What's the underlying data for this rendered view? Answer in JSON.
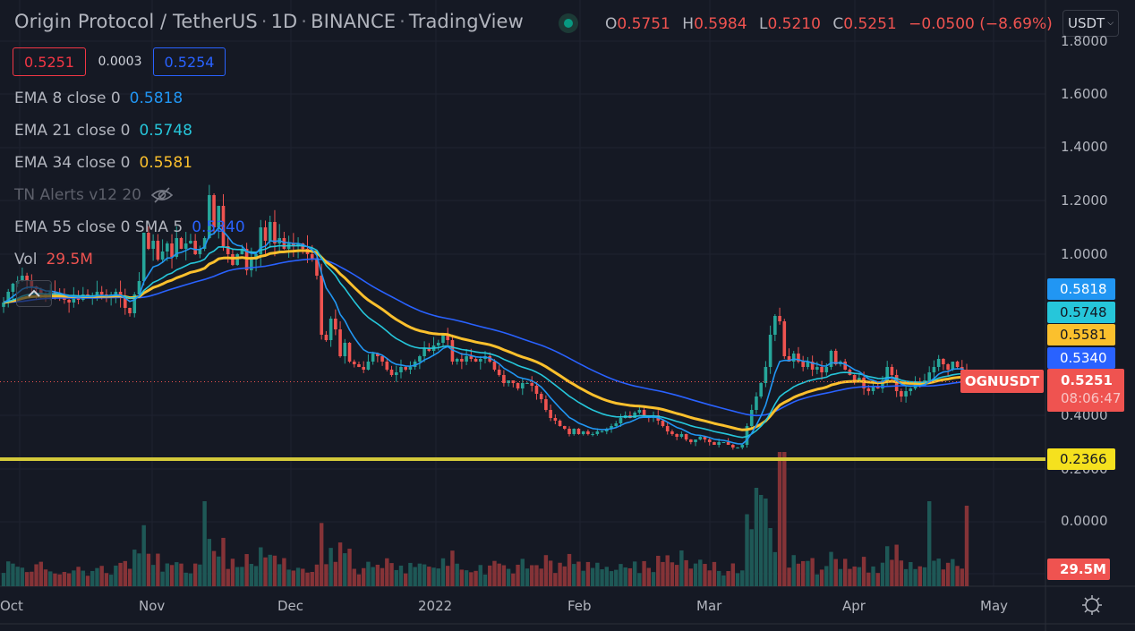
{
  "header": {
    "symbol_name": "Origin Protocol / TetherUS",
    "interval": "1D",
    "exchange": "BINANCE",
    "source": "TradingView",
    "market_status_color": "#089981"
  },
  "ohlc": {
    "o_label": "O",
    "o": "0.5751",
    "h_label": "H",
    "h": "0.5984",
    "l_label": "L",
    "l": "0.5210",
    "c_label": "C",
    "c": "0.5251",
    "change": "−0.0500 (−8.69%)"
  },
  "currency": {
    "label": "USDT"
  },
  "spread": {
    "bid": "0.5251",
    "spread": "0.0003",
    "ask": "0.5254"
  },
  "legend": [
    {
      "name": "EMA 8 close 0",
      "value": "0.5818",
      "color": "#2196f3"
    },
    {
      "name": "EMA 21 close 0",
      "value": "0.5748",
      "color": "#26c6da"
    },
    {
      "name": "EMA 34 close 0",
      "value": "0.5581",
      "color": "#fbc02d"
    },
    {
      "name": "TN Alerts v12 20",
      "value": "",
      "color": "#5d606b",
      "hidden": true
    },
    {
      "name": "EMA 55 close 0 SMA 5",
      "value": "0.5340",
      "color": "#2962ff"
    },
    {
      "name": "Vol",
      "value": "29.5M",
      "color": "#ef5350"
    }
  ],
  "price_axis": {
    "ticks": [
      "1.8000",
      "1.6000",
      "1.4000",
      "1.2000",
      "1.0000",
      "0.4000",
      "0.2000",
      "0.0000"
    ],
    "tags": [
      {
        "value": "0.5818",
        "bg": "#2196f3",
        "fg": "#ffffff"
      },
      {
        "value": "0.5748",
        "bg": "#26c6da",
        "fg": "#131722"
      },
      {
        "value": "0.5581",
        "bg": "#fbc02d",
        "fg": "#131722"
      },
      {
        "value": "0.5340",
        "bg": "#2962ff",
        "fg": "#ffffff"
      }
    ],
    "symbol_tag": "OGNUSDT",
    "last_price": "0.5251",
    "countdown": "08:06:47",
    "hline_value": "0.2366",
    "hline_color": "#f0e130",
    "volume_tag": "29.5M"
  },
  "time_axis": {
    "labels": [
      "Oct",
      "Nov",
      "Dec",
      "2022",
      "Feb",
      "Mar",
      "Apr",
      "May"
    ]
  },
  "chart_data": {
    "type": "candlestick",
    "title": "Origin Protocol / TetherUS · 1D · BINANCE",
    "xlabel": "",
    "ylabel": "USDT",
    "ylim": [
      0.0,
      1.8
    ],
    "x_ticks": [
      "Oct",
      "Nov",
      "Dec",
      "2022",
      "Feb",
      "Mar",
      "Apr",
      "May"
    ],
    "y_ticks": [
      0.0,
      0.2,
      0.4,
      1.0,
      1.2,
      1.4,
      1.6,
      1.8
    ],
    "grid": true,
    "legend_position": "top-left",
    "close": [
      0.82,
      0.86,
      0.89,
      0.9,
      0.92,
      0.9,
      0.88,
      0.87,
      0.85,
      0.84,
      0.86,
      0.85,
      0.84,
      0.83,
      0.82,
      0.84,
      0.83,
      0.85,
      0.84,
      0.84,
      0.86,
      0.85,
      0.84,
      0.85,
      0.86,
      0.84,
      0.8,
      0.78,
      0.85,
      0.9,
      1.08,
      1.02,
      1.05,
      0.98,
      1.01,
      1.04,
      0.99,
      1.06,
      1.02,
      1.04,
      1.05,
      1.0,
      1.02,
      1.06,
      1.22,
      1.1,
      1.18,
      1.03,
      1.0,
      0.96,
      1.0,
      1.02,
      0.94,
      0.98,
      1.0,
      1.1,
      1.05,
      1.12,
      1.04,
      1.06,
      1.02,
      1.04,
      1.03,
      1.04,
      1.02,
      1.0,
      0.98,
      0.92,
      0.7,
      0.68,
      0.76,
      0.72,
      0.62,
      0.67,
      0.6,
      0.59,
      0.58,
      0.57,
      0.6,
      0.63,
      0.62,
      0.6,
      0.57,
      0.55,
      0.56,
      0.58,
      0.57,
      0.58,
      0.6,
      0.62,
      0.65,
      0.64,
      0.66,
      0.67,
      0.7,
      0.68,
      0.6,
      0.61,
      0.6,
      0.62,
      0.61,
      0.6,
      0.61,
      0.62,
      0.6,
      0.57,
      0.55,
      0.52,
      0.53,
      0.52,
      0.5,
      0.52,
      0.52,
      0.51,
      0.48,
      0.46,
      0.42,
      0.39,
      0.38,
      0.36,
      0.35,
      0.33,
      0.35,
      0.33,
      0.34,
      0.33,
      0.33,
      0.34,
      0.34,
      0.35,
      0.36,
      0.37,
      0.39,
      0.4,
      0.39,
      0.41,
      0.42,
      0.4,
      0.39,
      0.4,
      0.38,
      0.36,
      0.34,
      0.33,
      0.32,
      0.33,
      0.31,
      0.3,
      0.31,
      0.32,
      0.31,
      0.3,
      0.29,
      0.3,
      0.3,
      0.29,
      0.28,
      0.28,
      0.29,
      0.36,
      0.42,
      0.47,
      0.52,
      0.58,
      0.7,
      0.77,
      0.75,
      0.62,
      0.6,
      0.63,
      0.6,
      0.58,
      0.6,
      0.57,
      0.58,
      0.56,
      0.58,
      0.64,
      0.59,
      0.6,
      0.57,
      0.55,
      0.53,
      0.54,
      0.5,
      0.49,
      0.51,
      0.5,
      0.53,
      0.58,
      0.55,
      0.49,
      0.47,
      0.49,
      0.5,
      0.52,
      0.51,
      0.53,
      0.56,
      0.58,
      0.61,
      0.59,
      0.57,
      0.6,
      0.58,
      0.57,
      0.5251
    ],
    "volume_scale_note": "relative heights, last bar = 29.5M",
    "series": [
      {
        "name": "EMA 8 close 0",
        "last": 0.5818,
        "color": "#2196f3"
      },
      {
        "name": "EMA 21 close 0",
        "last": 0.5748,
        "color": "#26c6da"
      },
      {
        "name": "EMA 34 close 0",
        "last": 0.5581,
        "color": "#fbc02d"
      },
      {
        "name": "EMA 55 close 0 SMA 5",
        "last": 0.534,
        "color": "#2962ff"
      }
    ],
    "horizontal_line": 0.2366,
    "last_volume": "29.5M"
  }
}
